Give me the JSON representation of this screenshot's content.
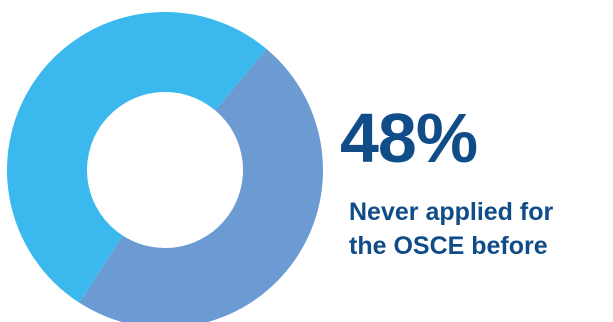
{
  "chart_data": {
    "type": "pie",
    "categories": [
      "",
      ""
    ],
    "values": [
      48,
      52
    ],
    "value_unit": "%",
    "donut": true,
    "start_angle_deg": -50,
    "colors": [
      "#6b9bd2",
      "#3bb8ee"
    ],
    "label_color": "#0f4c88",
    "highlight": {
      "value_text": "48%",
      "caption_lines": [
        "Never applied for",
        "the OSCE before"
      ]
    }
  }
}
